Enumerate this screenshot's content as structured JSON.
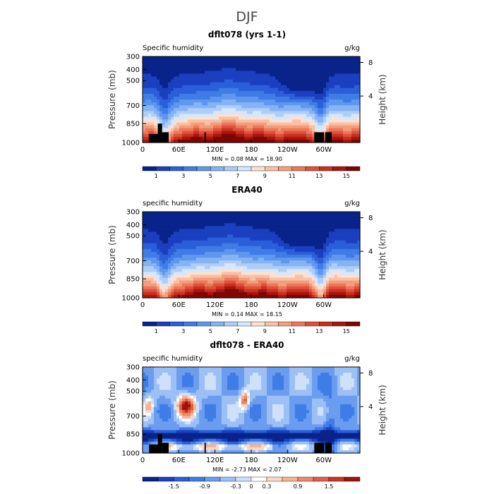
{
  "suptitle": "DJF",
  "chart_data": [
    {
      "type": "heatmap",
      "title": "dflt078 (yrs 1-1)",
      "left_label": "Specific humidity",
      "units": "g/kg",
      "ylabel": "Pressure (mb)",
      "ylabel_right": "Height (km)",
      "x_ticks": [
        "0",
        "60E",
        "120E",
        "180",
        "120W",
        "60W"
      ],
      "y_ticks": [
        "300",
        "400",
        "500",
        "700",
        "850",
        "1000"
      ],
      "right_ticks": [
        "8",
        "4"
      ],
      "min_max": "MIN =    0.08   MAX =   18.90",
      "colorbar": {
        "labels": [
          "1",
          "3",
          "5",
          "7",
          "9",
          "11",
          "13",
          "15"
        ],
        "colors": [
          "#08238a",
          "#1a3fbf",
          "#2b5fd9",
          "#3f7ce6",
          "#5f97ee",
          "#86b3f3",
          "#aecdf7",
          "#d6e6fb",
          "#fbe1d3",
          "#f8c0a5",
          "#f49d7c",
          "#ec7759",
          "#de513c",
          "#c9301f",
          "#a81510",
          "#7e0603"
        ]
      },
      "terrain": true,
      "diff": false,
      "seed": 11
    },
    {
      "type": "heatmap",
      "title": "ERA40",
      "left_label": "specific humidity",
      "units": "g/kg",
      "ylabel": "Pressure (mb)",
      "ylabel_right": "Height (km)",
      "x_ticks": [
        "0",
        "60E",
        "120E",
        "180",
        "120W",
        "60W"
      ],
      "y_ticks": [
        "300",
        "400",
        "500",
        "700",
        "850",
        "1000"
      ],
      "right_ticks": [
        "8",
        "4"
      ],
      "min_max": "MIN =    0.14   MAX =   18.15",
      "colorbar": {
        "labels": [
          "1",
          "3",
          "5",
          "7",
          "9",
          "11",
          "13",
          "15"
        ],
        "colors": [
          "#08238a",
          "#1a3fbf",
          "#2b5fd9",
          "#3f7ce6",
          "#5f97ee",
          "#86b3f3",
          "#aecdf7",
          "#d6e6fb",
          "#fbe1d3",
          "#f8c0a5",
          "#f49d7c",
          "#ec7759",
          "#de513c",
          "#c9301f",
          "#a81510",
          "#7e0603"
        ]
      },
      "terrain": false,
      "diff": false,
      "seed": 23
    },
    {
      "type": "heatmap",
      "title": "dflt078 - ERA40",
      "left_label": "specific humidity",
      "units": "g/kg",
      "ylabel": "Pressure (mb)",
      "ylabel_right": "Height (km)",
      "x_ticks": [
        "0",
        "60E",
        "120E",
        "180",
        "120W",
        "60W"
      ],
      "y_ticks": [
        "300",
        "400",
        "500",
        "700",
        "850",
        "1000"
      ],
      "right_ticks": [
        "8",
        "4"
      ],
      "min_max": "MIN =   -2.73   MAX =    2.07",
      "colorbar": {
        "labels": [
          "-1.5",
          "-0.9",
          "-0.3",
          "0",
          "0.3",
          "0.9",
          "1.5"
        ],
        "colors": [
          "#08238a",
          "#1a3fbf",
          "#2b5fd9",
          "#3f7ce6",
          "#6a9cf0",
          "#9cc0f5",
          "#cfe0fa",
          "#ffffff",
          "#fbd8c6",
          "#f6b293",
          "#ef8866",
          "#e05e42",
          "#c93423",
          "#9e1209"
        ]
      },
      "terrain": true,
      "diff": true,
      "seed": 37
    }
  ]
}
